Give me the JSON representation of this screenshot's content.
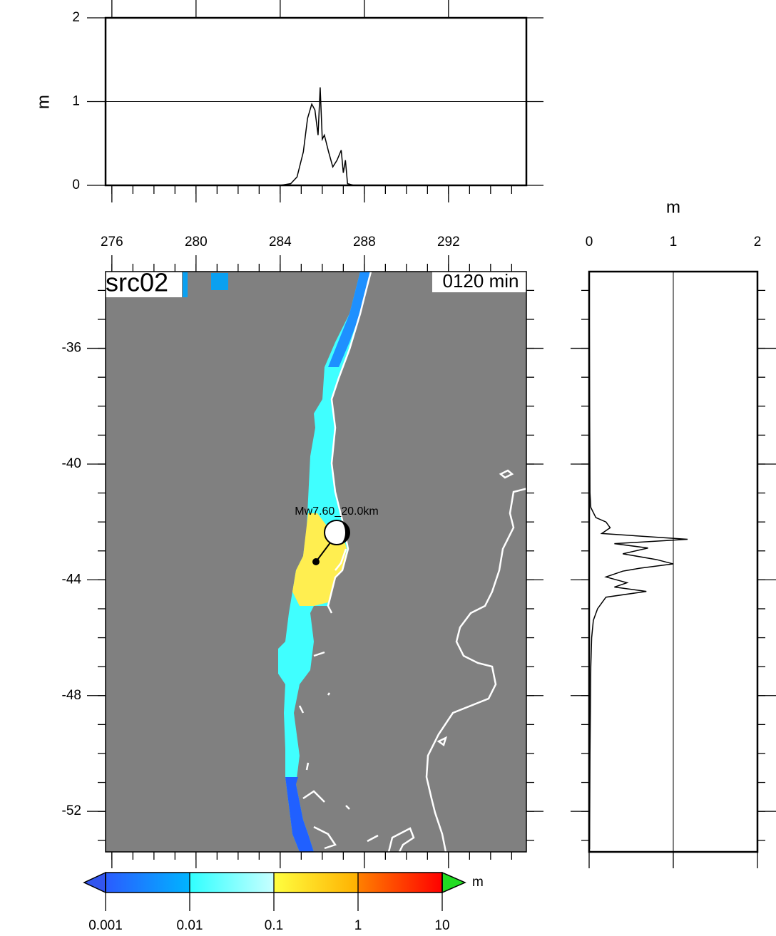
{
  "chart_data": [
    {
      "type": "line",
      "ylabel": "m",
      "x": [
        284,
        284.5,
        284.8,
        285.1,
        285.3,
        285.5,
        285.65,
        285.8,
        285.9,
        286.0,
        286.1,
        286.3,
        286.5,
        286.7,
        286.9,
        287.0,
        287.1,
        287.2,
        287.5
      ],
      "values": [
        0,
        0.02,
        0.1,
        0.4,
        0.8,
        0.97,
        0.9,
        0.6,
        1.17,
        0.55,
        0.6,
        0.4,
        0.22,
        0.3,
        0.42,
        0.15,
        0.3,
        0.02,
        0
      ],
      "xlim": [
        275.7,
        295.7
      ],
      "ylim": [
        0,
        2
      ],
      "yticks": [
        0,
        1,
        2
      ],
      "reference_line": 1,
      "color": "#000000"
    },
    {
      "type": "map",
      "title": "src02",
      "subtitle": "0120 min",
      "annotation": "Mw7.60_20.0km",
      "xlim": [
        275.7,
        295.7
      ],
      "ylim": [
        -33.35,
        -53.4
      ],
      "xticks": [
        276,
        280,
        284,
        288,
        292
      ],
      "yticks": [
        -36,
        -40,
        -44,
        -48,
        -52
      ],
      "background": "#808080"
    },
    {
      "type": "line",
      "orientation": "vertical",
      "xlabel": "m",
      "y": [
        -33.6,
        -41.0,
        -41.5,
        -41.85,
        -42.0,
        -42.2,
        -42.4,
        -42.6,
        -42.75,
        -42.9,
        -43.1,
        -43.3,
        -43.45,
        -43.6,
        -43.7,
        -43.9,
        -44.1,
        -44.25,
        -44.4,
        -44.6,
        -44.8,
        -45.0,
        -45.4,
        -46.0,
        -47.0,
        -50.0,
        -53.3
      ],
      "values": [
        0,
        0.01,
        0.02,
        0.08,
        0.2,
        0.25,
        0.15,
        1.17,
        0.3,
        0.7,
        0.4,
        0.8,
        1.0,
        0.6,
        0.4,
        0.2,
        0.45,
        0.3,
        0.68,
        0.2,
        0.15,
        0.1,
        0.05,
        0.03,
        0.02,
        0.01,
        0.005
      ],
      "xlim": [
        0,
        2
      ],
      "ylim": [
        -33.35,
        -53.4
      ],
      "xticks": [
        0,
        1,
        2
      ],
      "reference_line": 1,
      "color": "#000000"
    },
    {
      "type": "colorbar",
      "log": true,
      "unit": "m",
      "ticks": [
        0.001,
        0.01,
        0.1,
        1,
        10
      ],
      "colors": [
        [
          "#2a5cff",
          "#00b4ff"
        ],
        [
          "#30ffff",
          "#c8ffff"
        ],
        [
          "#ffff40",
          "#ffb000"
        ],
        [
          "#ff8000",
          "#ff0000"
        ]
      ],
      "under_color": "#3355ee",
      "over_color": "#22dd22"
    }
  ]
}
